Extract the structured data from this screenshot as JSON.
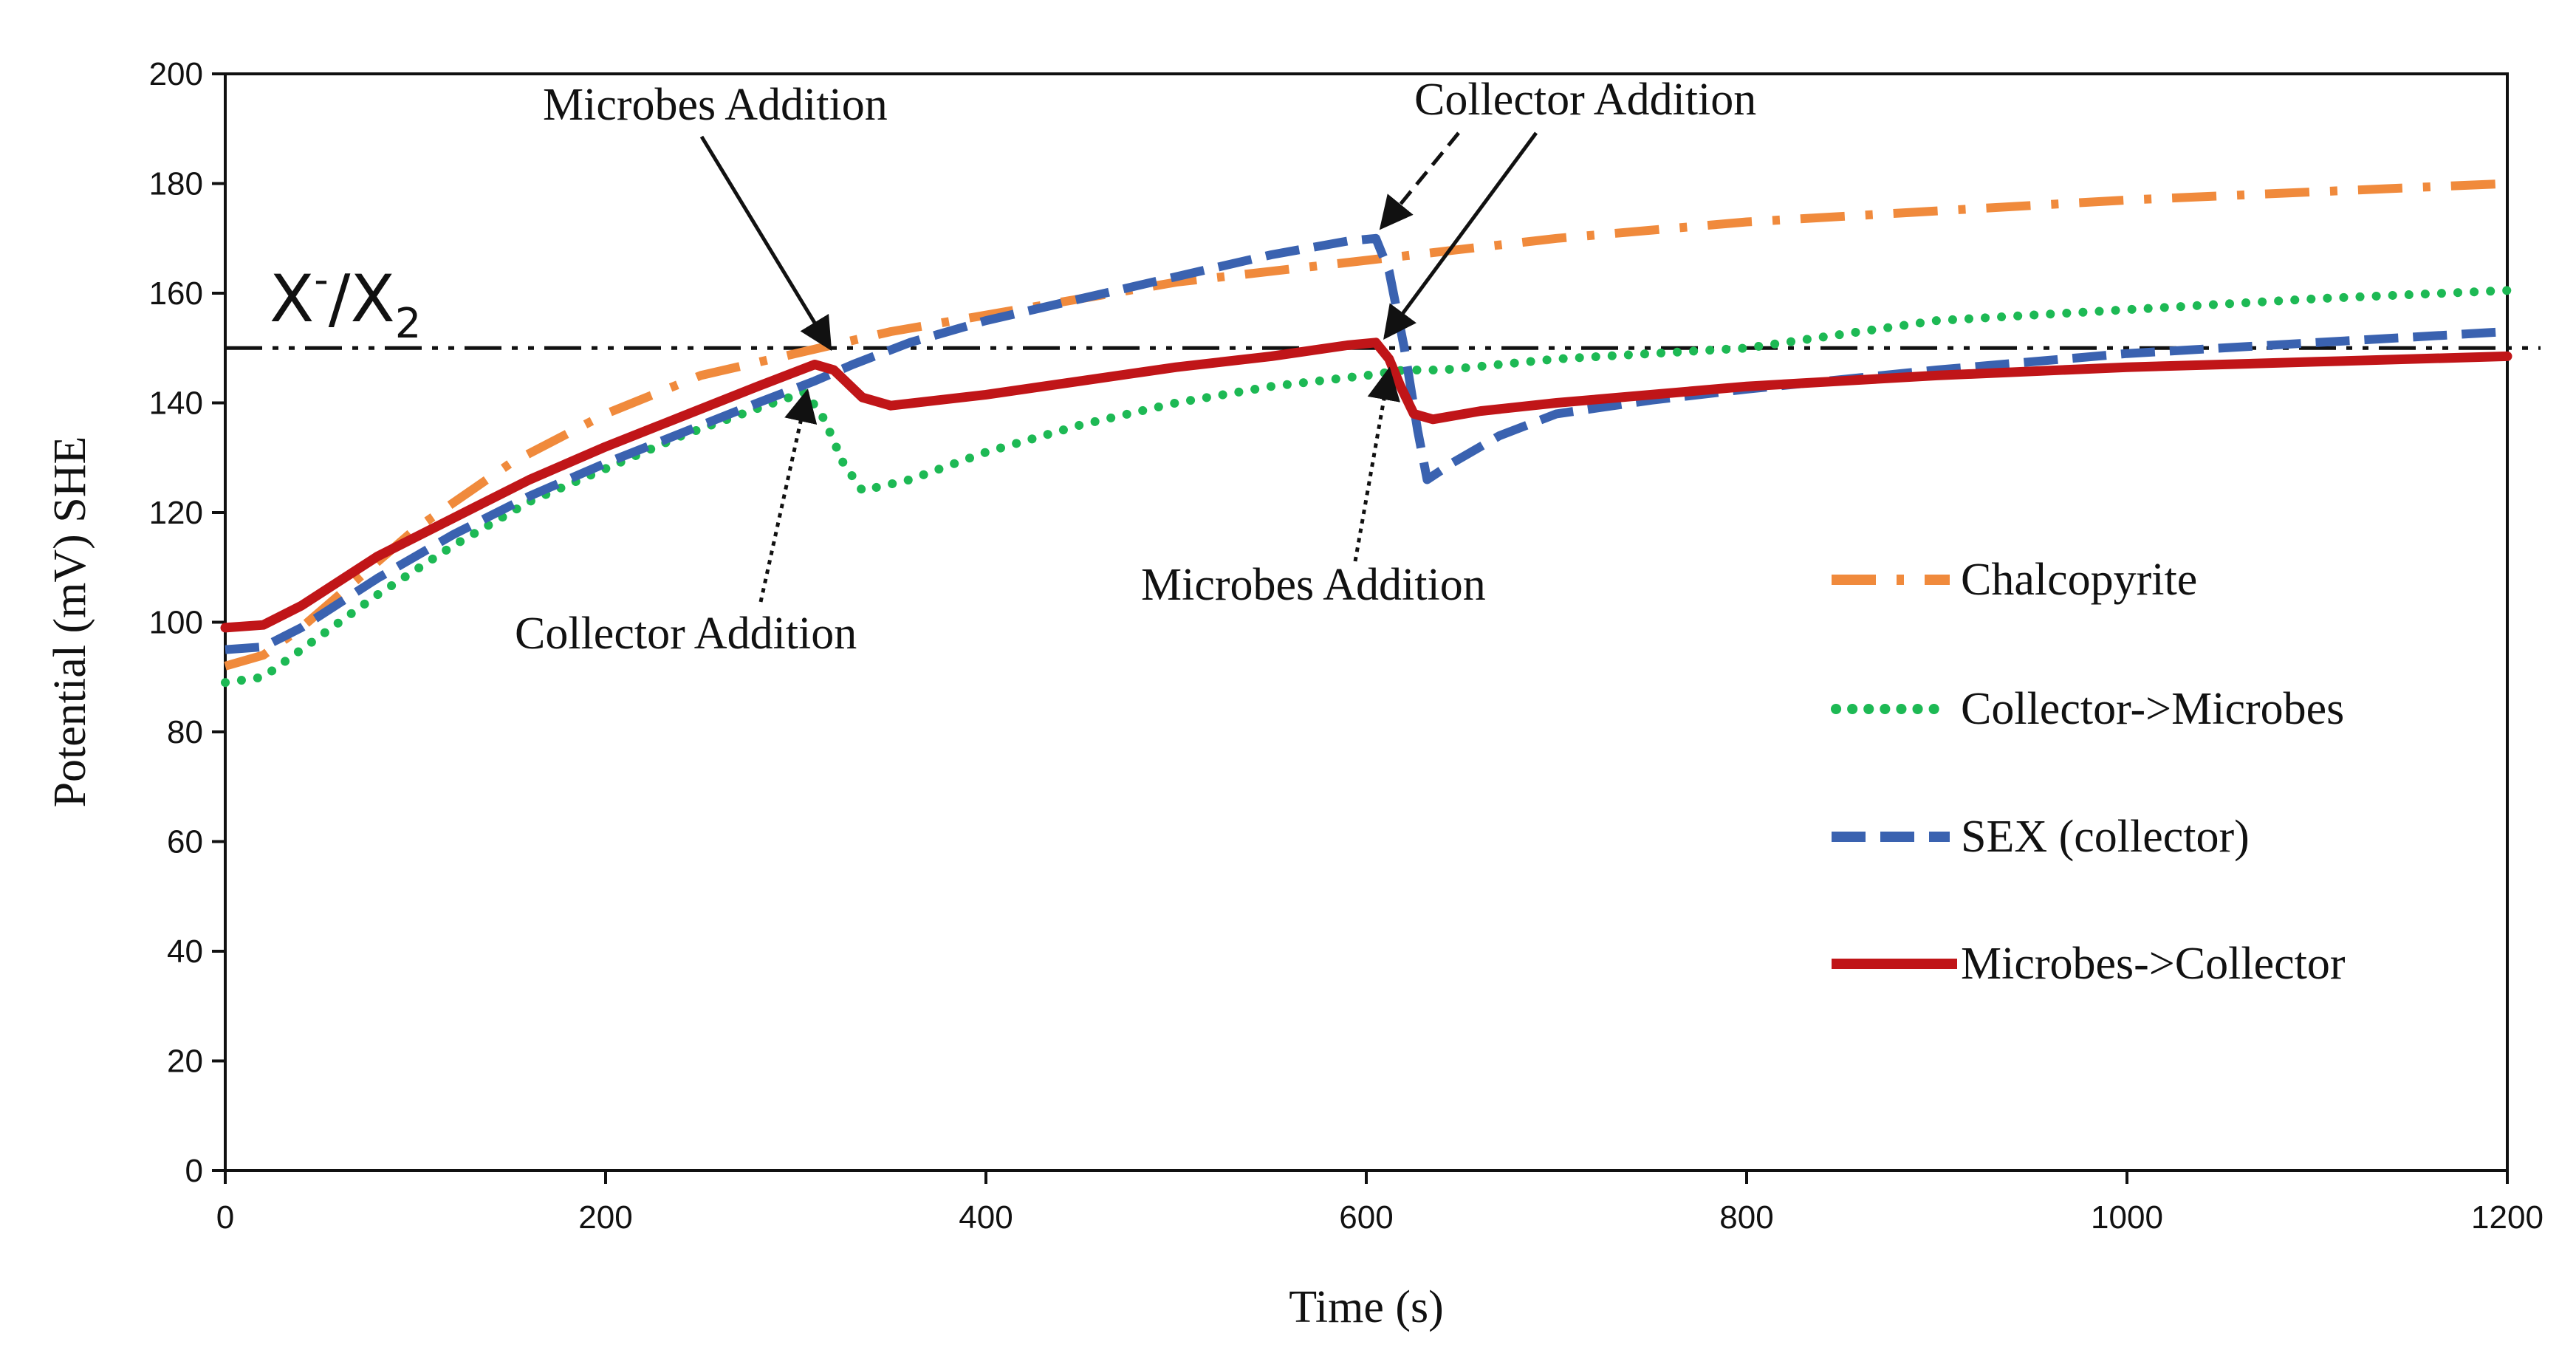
{
  "chart_data": {
    "type": "line",
    "title": "",
    "xlabel": "Time (s)",
    "ylabel": "Potential (mV) SHE",
    "xlim": [
      0,
      1200
    ],
    "ylim": [
      0,
      200
    ],
    "x_ticks": [
      "0",
      "200",
      "400",
      "600",
      "800",
      "1000",
      "1200"
    ],
    "y_ticks": [
      "0",
      "20",
      "40",
      "60",
      "80",
      "100",
      "120",
      "140",
      "160",
      "180",
      "200"
    ],
    "grid": false,
    "legend_position": "right",
    "reference_line": {
      "y": 150,
      "label_main": "X",
      "label_sup": "-",
      "label_mid": "/X",
      "label_sub": "2",
      "color": "#111111"
    },
    "series": [
      {
        "name": "Chalcopyrite",
        "color": "#F08A3C",
        "style": "dashdot",
        "points": [
          [
            0,
            92
          ],
          [
            20,
            94
          ],
          [
            40,
            99
          ],
          [
            70,
            108
          ],
          [
            100,
            117
          ],
          [
            150,
            129
          ],
          [
            200,
            138
          ],
          [
            250,
            145
          ],
          [
            300,
            149
          ],
          [
            350,
            153
          ],
          [
            400,
            156
          ],
          [
            450,
            159
          ],
          [
            500,
            162
          ],
          [
            550,
            164
          ],
          [
            600,
            166
          ],
          [
            650,
            168
          ],
          [
            700,
            170
          ],
          [
            800,
            173
          ],
          [
            900,
            175
          ],
          [
            1000,
            177
          ],
          [
            1100,
            178.5
          ],
          [
            1200,
            180
          ]
        ]
      },
      {
        "name": "Collector->Microbes",
        "color": "#1DB954",
        "style": "dotted",
        "points": [
          [
            0,
            89
          ],
          [
            20,
            90
          ],
          [
            40,
            95
          ],
          [
            80,
            105
          ],
          [
            120,
            114
          ],
          [
            160,
            122
          ],
          [
            200,
            128
          ],
          [
            240,
            134
          ],
          [
            280,
            139
          ],
          [
            305,
            142
          ],
          [
            315,
            137
          ],
          [
            325,
            129
          ],
          [
            335,
            124
          ],
          [
            360,
            126
          ],
          [
            400,
            131
          ],
          [
            450,
            136
          ],
          [
            500,
            140
          ],
          [
            550,
            143
          ],
          [
            600,
            145
          ],
          [
            620,
            146
          ],
          [
            640,
            146
          ],
          [
            700,
            148
          ],
          [
            800,
            150
          ],
          [
            900,
            155
          ],
          [
            1000,
            157
          ],
          [
            1100,
            159
          ],
          [
            1200,
            160.5
          ]
        ]
      },
      {
        "name": "SEX (collector)",
        "color": "#3A62B0",
        "style": "dashed",
        "points": [
          [
            0,
            95
          ],
          [
            20,
            95.5
          ],
          [
            40,
            99
          ],
          [
            80,
            108
          ],
          [
            120,
            116
          ],
          [
            160,
            123
          ],
          [
            200,
            129
          ],
          [
            240,
            134.5
          ],
          [
            280,
            140
          ],
          [
            310,
            144
          ],
          [
            330,
            147
          ],
          [
            360,
            151
          ],
          [
            400,
            155
          ],
          [
            450,
            159
          ],
          [
            500,
            163
          ],
          [
            550,
            167
          ],
          [
            590,
            169.5
          ],
          [
            605,
            170
          ],
          [
            612,
            164
          ],
          [
            620,
            150
          ],
          [
            627,
            135
          ],
          [
            632,
            126
          ],
          [
            645,
            129
          ],
          [
            670,
            134
          ],
          [
            700,
            138
          ],
          [
            750,
            140.5
          ],
          [
            800,
            142.5
          ],
          [
            900,
            146
          ],
          [
            1000,
            149
          ],
          [
            1100,
            151
          ],
          [
            1200,
            153
          ]
        ]
      },
      {
        "name": "Microbes->Collector",
        "color": "#C01518",
        "style": "solid",
        "points": [
          [
            0,
            99
          ],
          [
            20,
            99.5
          ],
          [
            40,
            103
          ],
          [
            80,
            112
          ],
          [
            120,
            119
          ],
          [
            160,
            126
          ],
          [
            200,
            132
          ],
          [
            240,
            137.5
          ],
          [
            280,
            143
          ],
          [
            310,
            147
          ],
          [
            320,
            146
          ],
          [
            335,
            141
          ],
          [
            350,
            139.5
          ],
          [
            400,
            141.5
          ],
          [
            450,
            144
          ],
          [
            500,
            146.5
          ],
          [
            550,
            148.5
          ],
          [
            590,
            150.5
          ],
          [
            605,
            151
          ],
          [
            612,
            148
          ],
          [
            618,
            143
          ],
          [
            625,
            138
          ],
          [
            635,
            137
          ],
          [
            660,
            138.5
          ],
          [
            700,
            140
          ],
          [
            750,
            141.5
          ],
          [
            800,
            143
          ],
          [
            900,
            145
          ],
          [
            1000,
            146.5
          ],
          [
            1100,
            147.5
          ],
          [
            1200,
            148.5
          ]
        ]
      }
    ],
    "annotations": [
      {
        "text": "Microbes Addition",
        "style": "solid",
        "target_x": 318,
        "target_y": 150
      },
      {
        "text": "Collector Addition",
        "style": "dotted",
        "target_x": 306,
        "target_y": 142
      },
      {
        "text": "Collector Addition",
        "style": "dashed",
        "target_x": 608,
        "target_y": 172
      },
      {
        "text": "Collector Addition",
        "style": "solid",
        "target_x": 610,
        "target_y": 152
      },
      {
        "text": "Microbes Addition",
        "style": "dotted",
        "target_x": 612,
        "target_y": 146
      }
    ]
  }
}
